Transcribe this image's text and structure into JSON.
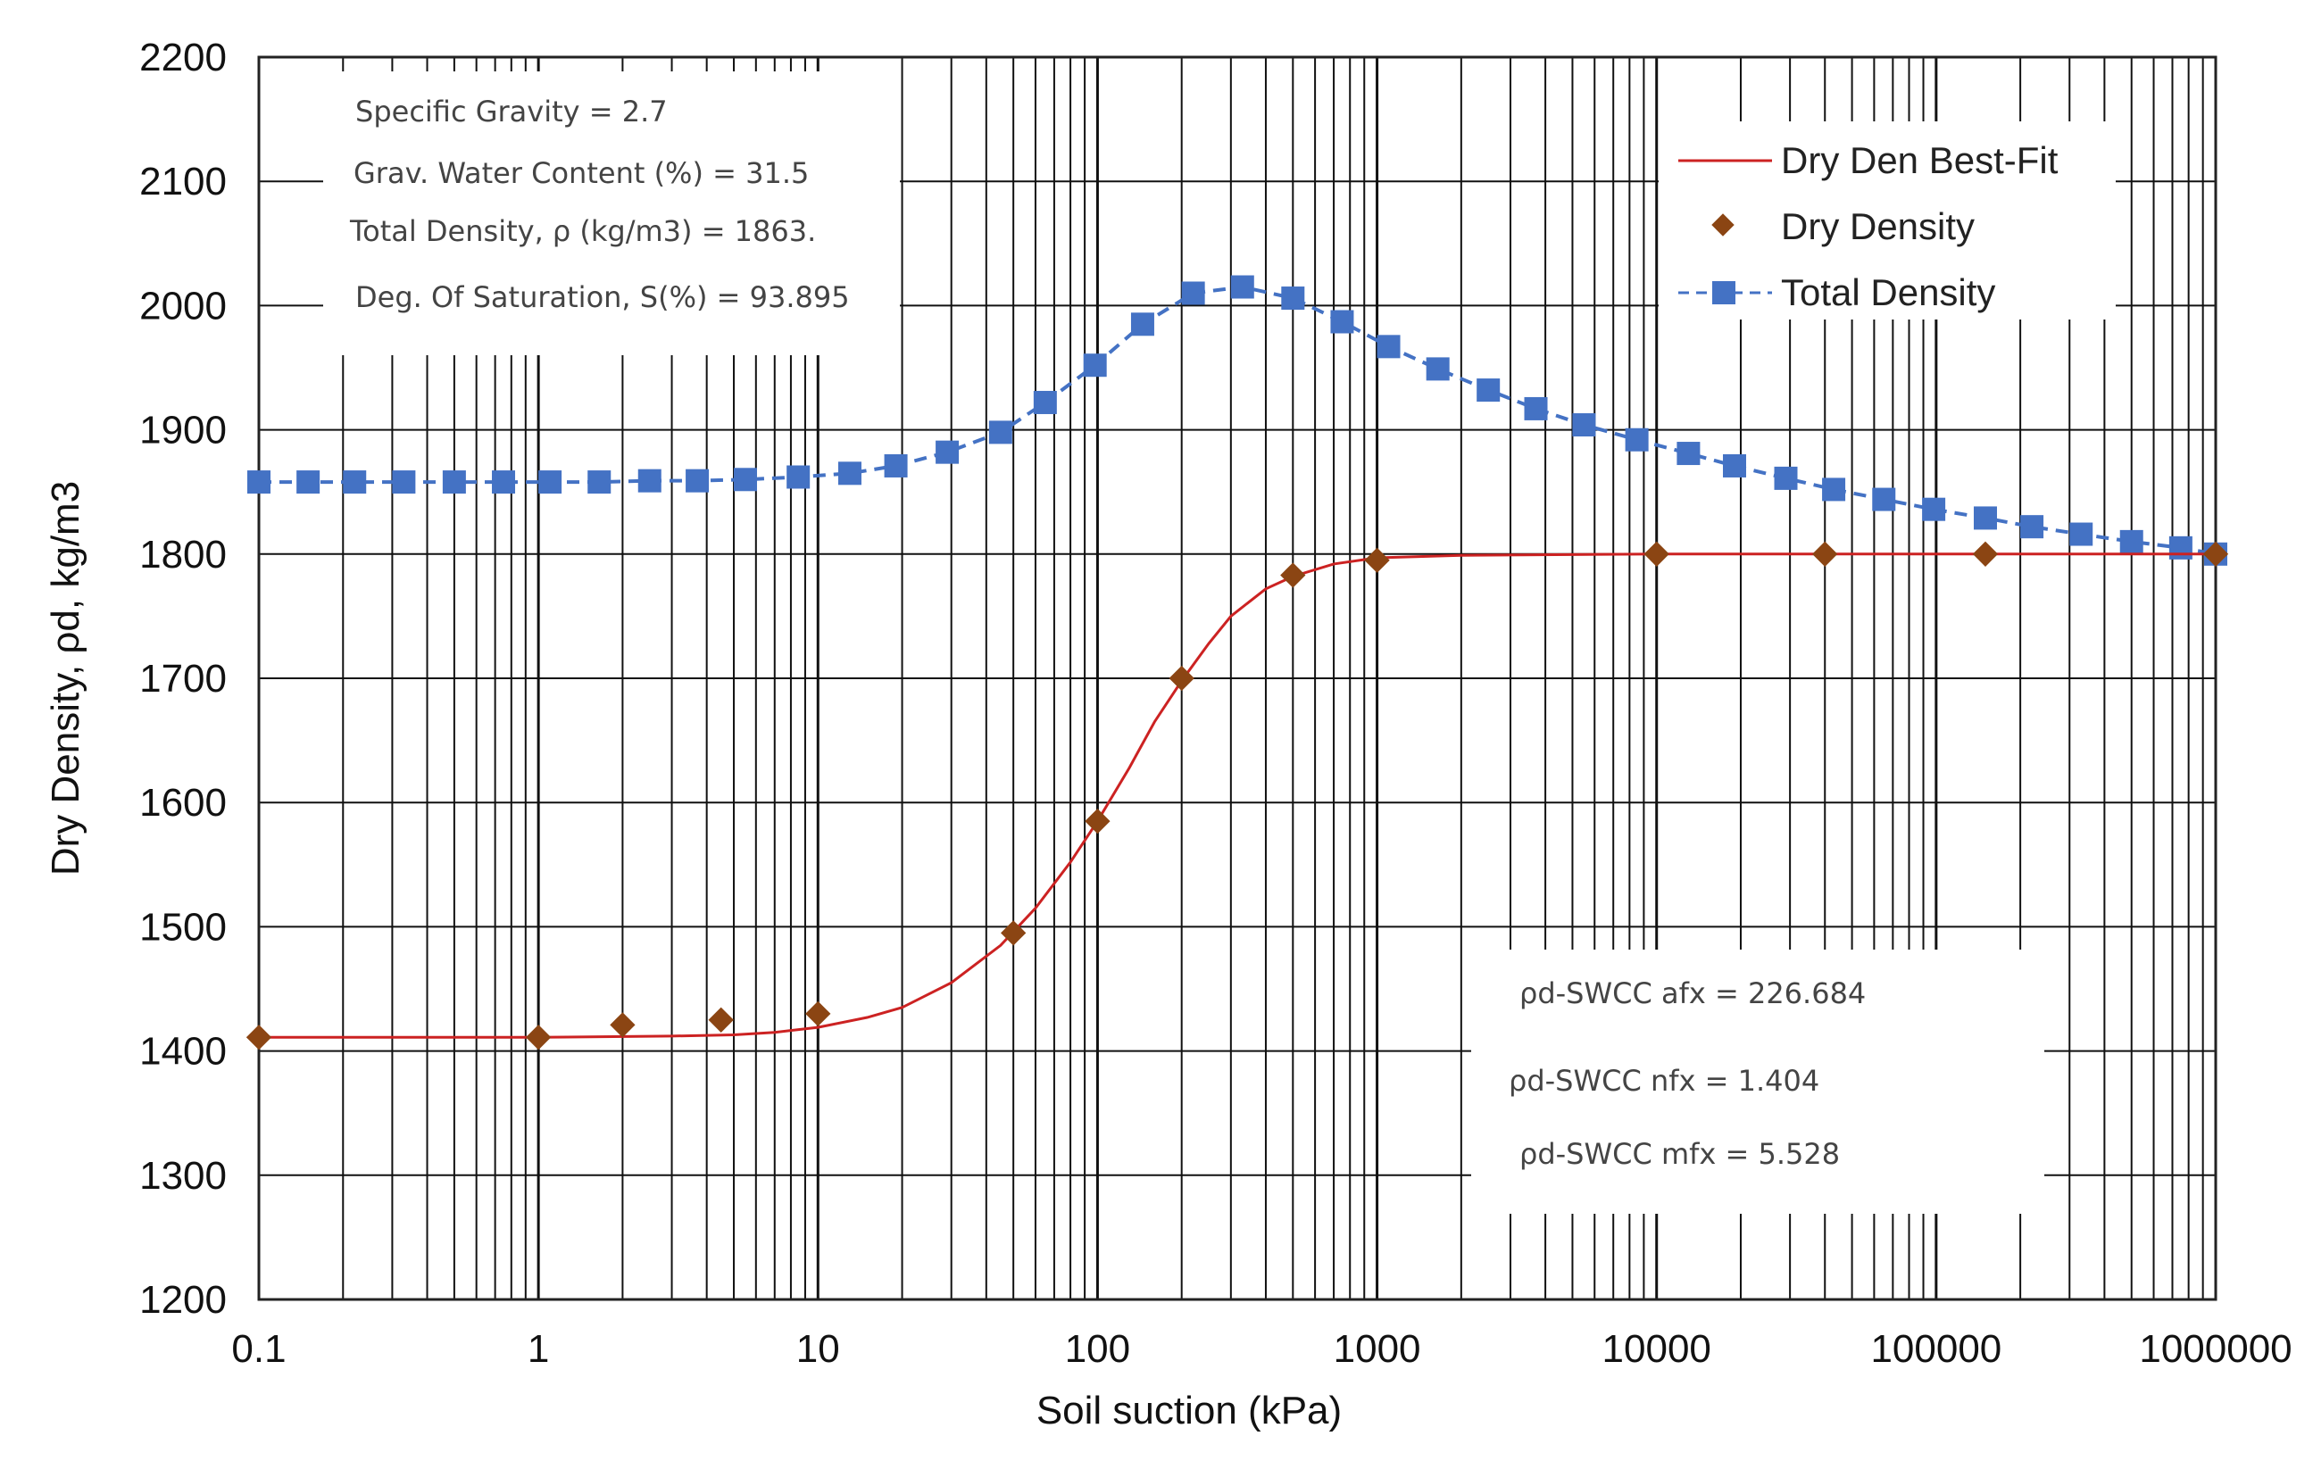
{
  "chart_data": {
    "type": "line",
    "title": "",
    "xlabel": "Soil suction (kPa)",
    "ylabel": "Dry Density, ρd, kg/m3",
    "xscale": "log",
    "xlim": [
      0.1,
      1000000
    ],
    "ylim": [
      1200,
      2200
    ],
    "grid": true,
    "x_tick_labels": [
      "0.1",
      "1",
      "10",
      "100",
      "1000",
      "10000",
      "100000",
      "1000000"
    ],
    "y_ticks": [
      1200,
      1300,
      1400,
      1500,
      1600,
      1700,
      1800,
      1900,
      2000,
      2100,
      2200
    ],
    "legend_position": "top-right",
    "series": [
      {
        "name": "Dry Den Best-Fit",
        "style": "line",
        "color": "#cc2222",
        "x": [
          0.1,
          1,
          3,
          5,
          7,
          10,
          15,
          20,
          30,
          45,
          60,
          80,
          100,
          130,
          160,
          200,
          250,
          300,
          400,
          500,
          700,
          1000,
          2000,
          10000,
          100000,
          1000000
        ],
        "y": [
          1411,
          1411,
          1412,
          1413,
          1415,
          1419,
          1427,
          1435,
          1455,
          1485,
          1515,
          1552,
          1585,
          1628,
          1665,
          1698,
          1728,
          1750,
          1772,
          1782,
          1792,
          1797,
          1799,
          1800,
          1800,
          1800
        ]
      },
      {
        "name": "Dry Density",
        "style": "diamond",
        "color": "#8b4513",
        "x": [
          0.1,
          1,
          2,
          4.5,
          10,
          50,
          100,
          200,
          500,
          1000,
          10000,
          40000,
          150000,
          1000000
        ],
        "y": [
          1411,
          1411,
          1421,
          1425,
          1430,
          1495,
          1585,
          1700,
          1783,
          1795,
          1800,
          1800,
          1800,
          1800
        ]
      },
      {
        "name": "Total Density",
        "style": "dashed-square",
        "color": "#4472c4",
        "x": [
          0.1,
          0.15,
          0.22,
          0.33,
          0.5,
          0.75,
          1.1,
          1.65,
          2.5,
          3.7,
          5.5,
          8.5,
          13,
          19,
          29,
          45,
          65,
          98,
          145,
          220,
          330,
          500,
          750,
          1100,
          1650,
          2500,
          3700,
          5500,
          8500,
          13000,
          19000,
          29000,
          43000,
          65000,
          98000,
          150000,
          220000,
          330000,
          500000,
          750000,
          1000000
        ],
        "y": [
          1858,
          1858,
          1858,
          1858,
          1858,
          1858,
          1858,
          1858,
          1859,
          1859,
          1860,
          1862,
          1865,
          1871,
          1882,
          1898,
          1922,
          1952,
          1985,
          2010,
          2015,
          2006,
          1987,
          1967,
          1949,
          1932,
          1917,
          1904,
          1892,
          1881,
          1871,
          1861,
          1852,
          1844,
          1836,
          1829,
          1822,
          1816,
          1810,
          1805,
          1800
        ]
      }
    ]
  },
  "annotations": {
    "top_left": [
      "Specific Gravity =  2.7",
      "Grav. Water Content (%) =  31.5",
      "Total Density, ρ (kg/m3) = 1863.",
      "Deg. Of Saturation, S(%) = 93.895"
    ],
    "bottom_right": [
      "ρd-SWCC afx =  226.684",
      "ρd-SWCC nfx =  1.404",
      "ρd-SWCC mfx =  5.528"
    ]
  }
}
